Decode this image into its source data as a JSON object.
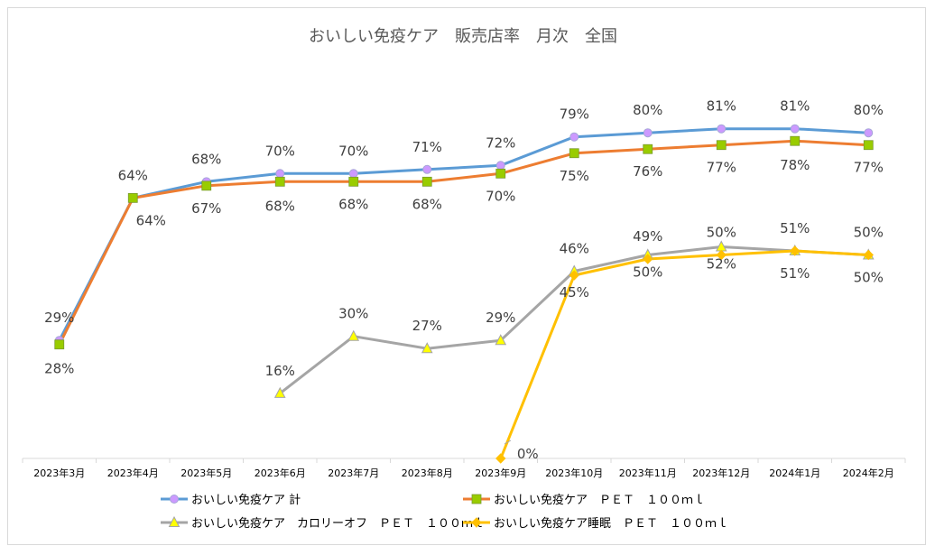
{
  "chart_data": {
    "type": "line",
    "title": "おいしい免疫ケア　販売店率　月次　全国",
    "xlabel": "",
    "ylabel": "",
    "ylim": [
      0,
      100
    ],
    "grid": false,
    "legend_position": "bottom",
    "categories": [
      "2023年3月",
      "2023年4月",
      "2023年5月",
      "2023年6月",
      "2023年7月",
      "2023年8月",
      "2023年9月",
      "2023年10月",
      "2023年11月",
      "2023年12月",
      "2024年1月",
      "2024年2月"
    ],
    "series": [
      {
        "name": "おいしい免疫ケア 計",
        "color": "#5b9bd5",
        "marker": "circle",
        "marker_fill": "#cc99ff",
        "values": [
          29,
          64,
          68,
          70,
          70,
          71,
          72,
          79,
          80,
          81,
          81,
          80
        ],
        "labels": [
          "29%",
          "64%",
          "68%",
          "70%",
          "70%",
          "71%",
          "72%",
          "79%",
          "80%",
          "81%",
          "81%",
          "80%"
        ]
      },
      {
        "name": "おいしい免疫ケア　ＰＥＴ　１００ｍｌ",
        "color": "#ed7d31",
        "marker": "square",
        "marker_fill": "#99cc00",
        "values": [
          28,
          64,
          67,
          68,
          68,
          68,
          70,
          75,
          76,
          77,
          78,
          77
        ],
        "labels": [
          "28%",
          "64%",
          "67%",
          "68%",
          "68%",
          "68%",
          "70%",
          "75%",
          "76%",
          "77%",
          "78%",
          "77%"
        ]
      },
      {
        "name": "おいしい免疫ケア　カロリーオフ　ＰＥＴ　１００ｍｌ",
        "color": "#a5a5a5",
        "marker": "triangle",
        "marker_fill": "#ffff00",
        "values": [
          null,
          null,
          null,
          16,
          30,
          27,
          29,
          46,
          50,
          52,
          51,
          50
        ],
        "labels": [
          null,
          null,
          null,
          "16%",
          "30%",
          "27%",
          "29%",
          "46%",
          "50%",
          "52%",
          "51%",
          "50%"
        ]
      },
      {
        "name": "おいしい免疫ケア睡眠　ＰＥＴ　１００ｍｌ",
        "color": "#ffc000",
        "marker": "diamond",
        "marker_fill": "#ffc000",
        "values": [
          null,
          null,
          null,
          null,
          null,
          null,
          0,
          45,
          49,
          50,
          51,
          50
        ],
        "labels": [
          null,
          null,
          null,
          null,
          null,
          null,
          "0%",
          "45%",
          "49%",
          "50%",
          "51%",
          "50%"
        ]
      }
    ]
  }
}
